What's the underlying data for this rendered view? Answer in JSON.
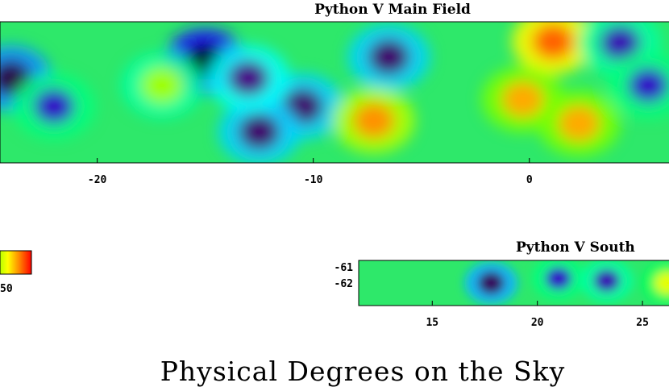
{
  "chart_data": [
    {
      "type": "heatmap",
      "title": "Python V Main Field",
      "xticks": [
        "-20",
        "-10",
        "0"
      ],
      "xtick_values": [
        -20,
        -10,
        0
      ],
      "xlim": [
        -24.5,
        6.5
      ],
      "yticks": [],
      "colorscale": [
        "#000000",
        "#4b0082",
        "#1a1aff",
        "#00ffff",
        "#00ff00",
        "#ffff00",
        "#ff8c00",
        "#ff0000"
      ],
      "hotspots": [
        {
          "x": -15,
          "y": 0.72,
          "level": 0.0
        },
        {
          "x": -24,
          "y": 0.6,
          "level": 0.08
        },
        {
          "x": -22,
          "y": 0.4,
          "level": 0.22
        },
        {
          "x": -10.5,
          "y": 0.4,
          "level": 0.12
        },
        {
          "x": -12.5,
          "y": 0.22,
          "level": 0.12
        },
        {
          "x": -6.5,
          "y": 0.75,
          "level": 0.12
        },
        {
          "x": -13,
          "y": 0.6,
          "level": 0.15
        },
        {
          "x": 1.1,
          "y": 0.86,
          "level": 0.9
        },
        {
          "x": -7.2,
          "y": 0.3,
          "level": 0.85
        },
        {
          "x": -0.3,
          "y": 0.45,
          "level": 0.82
        },
        {
          "x": 2.3,
          "y": 0.28,
          "level": 0.82
        },
        {
          "x": -17,
          "y": 0.55,
          "level": 0.66
        },
        {
          "x": 4.2,
          "y": 0.85,
          "level": 0.2
        },
        {
          "x": 5.5,
          "y": 0.55,
          "level": 0.22
        }
      ]
    },
    {
      "type": "heatmap",
      "title": "Python V South",
      "xticks": [
        "15",
        "20",
        "25"
      ],
      "xtick_values": [
        15,
        20,
        25
      ],
      "xlim": [
        11.5,
        26.3
      ],
      "yticks": [
        "-61",
        "-62"
      ],
      "hotspots": [
        {
          "x": 17.8,
          "y": 0.5,
          "level": 0.1
        },
        {
          "x": 21,
          "y": 0.6,
          "level": 0.22
        },
        {
          "x": 23.3,
          "y": 0.55,
          "level": 0.2
        },
        {
          "x": 26.2,
          "y": 0.5,
          "level": 0.7
        }
      ]
    }
  ],
  "colorbar": {
    "label": "50"
  },
  "main_axis_label": "Physical Degrees on the Sky"
}
